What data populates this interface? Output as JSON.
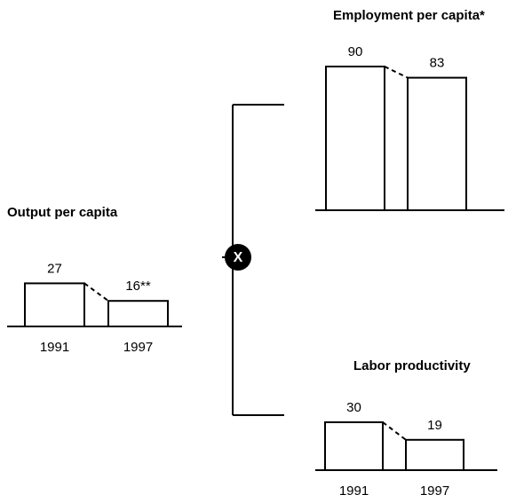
{
  "operator": "X",
  "chart_data": [
    {
      "type": "bar",
      "title": "Output per capita",
      "categories": [
        "1991",
        "1997"
      ],
      "values": [
        27,
        16
      ],
      "value_labels": [
        "27",
        "16**"
      ],
      "color": "#ffffff"
    },
    {
      "type": "bar",
      "title": "Employment per capita*",
      "categories": [
        null,
        null
      ],
      "values": [
        90,
        83
      ],
      "color": "#ffffff"
    },
    {
      "type": "bar",
      "title": "Labor productivity",
      "categories": [
        "1991",
        "1997"
      ],
      "values": [
        30,
        19
      ],
      "color": "#ffffff"
    }
  ]
}
